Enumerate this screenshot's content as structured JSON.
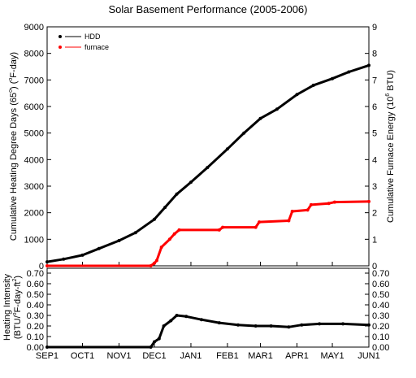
{
  "chart_data": [
    {
      "type": "line",
      "title": "Solar Basement Performance (2005-2006)",
      "ylabel": "Cumulative Heating Degree Days (65°) (°F-day)",
      "ylabel_parts": {
        "main": "Cumulative Heating Degree Days (65",
        "sup1": "o",
        "mid": ") (",
        "sup2": "o",
        "end": "F-day)"
      },
      "y2label": "Cumulative Furnace Energy (10⁶ BTU)",
      "y2label_parts": {
        "main": "Cumulative Furnace Energy (10",
        "sup": "6",
        "end": " BTU)"
      },
      "ylim": [
        0,
        9000
      ],
      "yticks": [
        "0",
        "1000",
        "2000",
        "3000",
        "4000",
        "5000",
        "6000",
        "7000",
        "8000",
        "9000"
      ],
      "y2lim": [
        0,
        9
      ],
      "y2ticks": [
        "0",
        "1",
        "2",
        "3",
        "4",
        "5",
        "6",
        "7",
        "8",
        "9"
      ],
      "x_range": [
        "2005-09-01",
        "2006-06-01"
      ],
      "legend_position": "top-left",
      "grid": false,
      "series": [
        {
          "name": "HDD",
          "color": "#000000",
          "axis": "left",
          "marker": "dot",
          "points": [
            [
              "2005-09-01",
              150
            ],
            [
              "2005-09-15",
              250
            ],
            [
              "2005-10-01",
              400
            ],
            [
              "2005-10-15",
              650
            ],
            [
              "2005-11-01",
              950
            ],
            [
              "2005-11-15",
              1250
            ],
            [
              "2005-12-01",
              1750
            ],
            [
              "2005-12-10",
              2200
            ],
            [
              "2005-12-20",
              2700
            ],
            [
              "2006-01-01",
              3150
            ],
            [
              "2006-01-15",
              3700
            ],
            [
              "2006-02-01",
              4400
            ],
            [
              "2006-02-15",
              5000
            ],
            [
              "2006-03-01",
              5550
            ],
            [
              "2006-03-15",
              5900
            ],
            [
              "2006-04-01",
              6450
            ],
            [
              "2006-04-15",
              6800
            ],
            [
              "2006-05-01",
              7050
            ],
            [
              "2006-05-15",
              7300
            ],
            [
              "2006-06-01",
              7550
            ]
          ]
        },
        {
          "name": "furnace",
          "color": "#ff0000",
          "axis": "right",
          "marker": "dot",
          "points": [
            [
              "2005-09-01",
              0
            ],
            [
              "2005-11-28",
              0
            ],
            [
              "2005-12-01",
              0.1
            ],
            [
              "2005-12-03",
              0.2
            ],
            [
              "2005-12-07",
              0.7
            ],
            [
              "2005-12-14",
              1.0
            ],
            [
              "2005-12-18",
              1.2
            ],
            [
              "2005-12-22",
              1.35
            ],
            [
              "2006-01-25",
              1.35
            ],
            [
              "2006-01-28",
              1.45
            ],
            [
              "2006-02-25",
              1.45
            ],
            [
              "2006-02-28",
              1.65
            ],
            [
              "2006-03-25",
              1.7
            ],
            [
              "2006-03-28",
              2.05
            ],
            [
              "2006-04-10",
              2.1
            ],
            [
              "2006-04-13",
              2.3
            ],
            [
              "2006-04-28",
              2.35
            ],
            [
              "2006-05-03",
              2.4
            ],
            [
              "2006-06-01",
              2.42
            ]
          ]
        }
      ]
    },
    {
      "type": "line",
      "title": "",
      "ylabel": "Heating Intensity (BTU/°F-day-ft²)",
      "ylabel_line1": "Heating Intensity",
      "ylabel_line2_parts": {
        "main": "(BTU/",
        "sup1": "o",
        "mid": "F-day-ft",
        "sup2": "2",
        "end": ")"
      },
      "ylim": [
        0,
        0.7
      ],
      "yticks": [
        "0.00",
        "0.10",
        "0.20",
        "0.30",
        "0.40",
        "0.50",
        "0.60",
        "0.70"
      ],
      "y2ticks": [
        "0.00",
        "0.10",
        "0.20",
        "0.30",
        "0.40",
        "0.50",
        "0.60",
        "0.70"
      ],
      "x_range": [
        "2005-09-01",
        "2006-06-01"
      ],
      "xticks": [
        "SEP1",
        "OCT1",
        "NOV1",
        "DEC1",
        "JAN1",
        "FEB1",
        "MAR1",
        "APR1",
        "MAY1",
        "JUN1"
      ],
      "xtick_dates": [
        "2005-09-01",
        "2005-10-01",
        "2005-11-01",
        "2005-12-01",
        "2006-01-01",
        "2006-02-01",
        "2006-03-01",
        "2006-04-01",
        "2006-05-01",
        "2006-06-01"
      ],
      "grid": false,
      "series": [
        {
          "color": "#000000",
          "marker": "dot",
          "points": [
            [
              "2005-09-01",
              0.0
            ],
            [
              "2005-11-28",
              0.0
            ],
            [
              "2005-12-01",
              0.05
            ],
            [
              "2005-12-05",
              0.08
            ],
            [
              "2005-12-09",
              0.2
            ],
            [
              "2005-12-15",
              0.25
            ],
            [
              "2005-12-20",
              0.3
            ],
            [
              "2005-12-28",
              0.29
            ],
            [
              "2006-01-10",
              0.26
            ],
            [
              "2006-01-25",
              0.23
            ],
            [
              "2006-02-10",
              0.21
            ],
            [
              "2006-02-25",
              0.2
            ],
            [
              "2006-03-10",
              0.2
            ],
            [
              "2006-03-25",
              0.19
            ],
            [
              "2006-04-05",
              0.21
            ],
            [
              "2006-04-20",
              0.22
            ],
            [
              "2006-05-10",
              0.22
            ],
            [
              "2006-06-01",
              0.21
            ]
          ]
        }
      ]
    }
  ]
}
